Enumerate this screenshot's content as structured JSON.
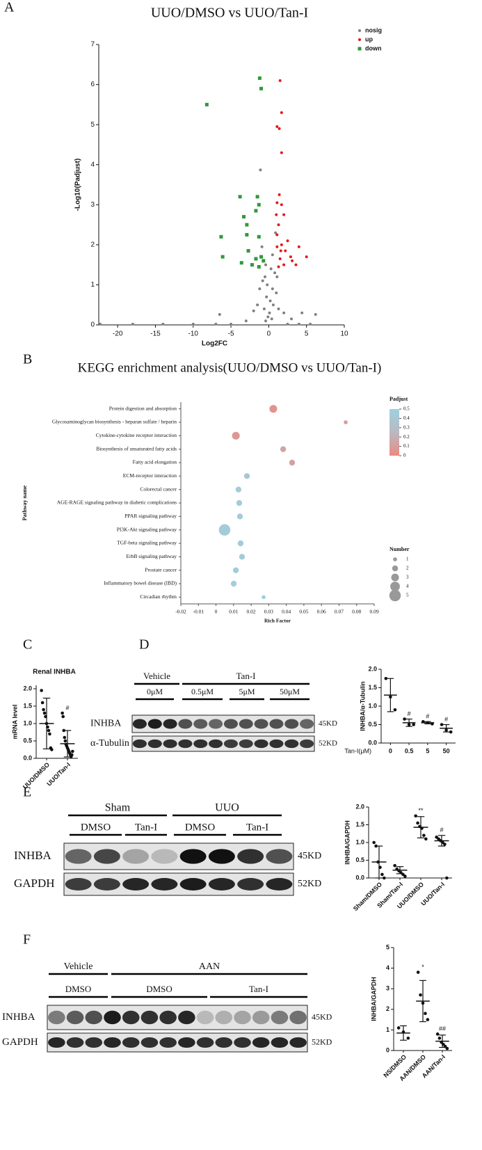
{
  "panels": [
    "A",
    "B",
    "C",
    "D",
    "E",
    "F"
  ],
  "chart_data": [
    {
      "type": "scatter",
      "title": "UUO/DMSO vs UUO/Tan-I",
      "x_label": "Log2FC",
      "y_label": "-Log10(Padjust)",
      "xlim": [
        -22.5,
        10
      ],
      "xticks": [
        -20,
        -15,
        -10,
        -5,
        0,
        5,
        10
      ],
      "ylim": [
        0,
        7
      ],
      "yticks": [
        0,
        1,
        2,
        3,
        4,
        5,
        6,
        7
      ],
      "legend": "upper right",
      "series": [
        {
          "name": "nosig",
          "color": "#808080",
          "marker": "circle",
          "x": [
            -1.1,
            -6.5,
            6.2,
            4.4,
            -0.5,
            0.3,
            -0.2,
            0.5,
            0.8,
            -0.8,
            -0.3,
            0.2,
            0.6,
            -0.6,
            1.0,
            -1.2,
            0.1,
            -0.1,
            0.4,
            -0.4,
            1.3,
            -1.5,
            2.0,
            -2.0,
            3.0,
            -3.0,
            -22.3,
            -18,
            -14,
            -10,
            -7,
            -5,
            2.5,
            4,
            5.5,
            0.9,
            -0.9,
            0.5,
            -0.4,
            1.1
          ],
          "y": [
            3.87,
            0.26,
            0.26,
            0.3,
            1.2,
            1.4,
            1.0,
            0.9,
            1.3,
            1.1,
            0.7,
            0.6,
            0.5,
            0.4,
            0.8,
            0.9,
            0.3,
            0.2,
            0.15,
            0.1,
            0.4,
            0.5,
            0.3,
            0.35,
            0.15,
            0.1,
            0.02,
            0.02,
            0.02,
            0.02,
            0.02,
            0.02,
            0.02,
            0.02,
            0.02,
            2.3,
            1.95,
            1.75,
            1.5,
            1.2
          ]
        },
        {
          "name": "up",
          "color": "#e31a1c",
          "marker": "circle",
          "x": [
            1.5,
            1.7,
            1.1,
            1.4,
            1.7,
            1.4,
            1.1,
            1.7,
            1.0,
            2.0,
            1.3,
            1.1,
            1.7,
            4.0,
            5.0,
            2.2,
            3.1,
            1.1,
            1.5,
            2.0,
            1.3,
            3.6,
            2.9,
            1.6,
            2.5
          ],
          "y": [
            6.1,
            5.3,
            4.95,
            4.9,
            4.3,
            3.25,
            3.05,
            3.0,
            2.75,
            2.75,
            2.5,
            2.25,
            2.0,
            1.95,
            1.7,
            1.85,
            1.6,
            1.95,
            1.65,
            1.5,
            1.45,
            1.5,
            1.7,
            1.85,
            2.1
          ]
        },
        {
          "name": "down",
          "color": "#2e9a3a",
          "marker": "square",
          "x": [
            -8.2,
            -1.2,
            -1.0,
            -3.8,
            -1.5,
            -6.3,
            -6.1,
            -3.6,
            -2.7,
            -1.3,
            -2.9,
            -1.7,
            -1.3,
            -2.9,
            -3.3,
            -1.7,
            -1.0,
            -2.2,
            -0.7,
            -1.3
          ],
          "y": [
            5.5,
            6.16,
            5.9,
            3.2,
            3.2,
            2.2,
            1.7,
            1.55,
            1.85,
            2.2,
            2.5,
            2.85,
            3.0,
            2.25,
            2.7,
            1.65,
            1.7,
            1.5,
            1.6,
            1.45
          ]
        }
      ]
    },
    {
      "type": "bubble",
      "title": "KEGG enrichment analysis(UUO/DMSO vs UUO/Tan-I)",
      "x_label": "Rich Factor",
      "y_label": "Pathway name",
      "categories": [
        "Protein digestion and absorption",
        "Glycosaminoglycan biosynthesis - heparan sulfate / heparin",
        "Cytokine-cytokine receptor interaction",
        "Biosynthesis of unsaturated fatty acids",
        "Fatty acid elongation",
        "ECM-receptor interaction",
        "Colorectal cancer",
        "AGE-RAGE signaling pathway in diabetic complications",
        "PPAR signaling pathway",
        "PI3K-Akt signaling pathway",
        "TGF-beta signaling pathway",
        "ErbB signaling pathway",
        "Prostate cancer",
        "Inflammatory bowel disease (IBD)",
        "Circadian rhythm"
      ],
      "x": [
        0.0326,
        0.0738,
        0.0113,
        0.0382,
        0.0433,
        0.0176,
        0.0128,
        0.0132,
        0.0136,
        0.0049,
        0.014,
        0.0148,
        0.0113,
        0.0101,
        0.0271
      ],
      "padjust": [
        0.05,
        0.1,
        0.08,
        0.15,
        0.12,
        0.4,
        0.45,
        0.45,
        0.45,
        0.45,
        0.45,
        0.45,
        0.45,
        0.48,
        0.5
      ],
      "number": [
        3,
        1,
        3,
        2,
        2,
        2,
        2,
        2,
        2,
        5,
        2,
        2,
        2,
        2,
        1
      ],
      "xlim": [
        -0.02,
        0.09
      ],
      "xticks": [
        -0.02,
        -0.01,
        0,
        0.01,
        0.02,
        0.03,
        0.04,
        0.05,
        0.06,
        0.07,
        0.08,
        0.09
      ],
      "color_title": "Padjust",
      "color_lim": [
        0,
        0.5
      ],
      "color_ticks": [
        0.5,
        0.4,
        0.3,
        0.2,
        0.1,
        0
      ],
      "color_scale": [
        "#ec8a80",
        "#b9b9c0",
        "#9fd0df"
      ],
      "size_title": "Number",
      "size_ticks": [
        1,
        2,
        3,
        4,
        5
      ]
    },
    {
      "type": "dot",
      "title": "Renal INHBA",
      "y_label": "mRNA level",
      "color": "#111111",
      "categories": [
        "UUO/DMSO",
        "UUO/Tan-I"
      ],
      "points": [
        [
          1.95,
          1.6,
          1.4,
          1.3,
          1.2,
          1.0,
          0.9,
          0.8,
          0.7,
          0.3,
          0.25
        ],
        [
          1.3,
          1.2,
          0.8,
          0.6,
          0.5,
          0.4,
          0.35,
          0.3,
          0.25,
          0.2,
          0.15,
          0.1,
          0.05,
          0.1,
          0.2
        ]
      ],
      "mean": [
        1.0,
        0.42
      ],
      "sd": [
        0.73,
        0.38
      ],
      "annotations": [
        null,
        "#"
      ],
      "ylim": [
        0,
        2.1
      ],
      "yticks": [
        {
          "value": 0,
          "label": "0.0"
        },
        0.5,
        {
          "value": 1,
          "label": "1.0"
        },
        1.5,
        {
          "value": 2,
          "label": "2.0"
        }
      ]
    },
    {
      "type": "dot",
      "y_label": "INHBA/α-Tubulin",
      "x_label": "Tan-I(μM)",
      "color": "#111111",
      "categories": [
        "0",
        "0.5",
        "5",
        "50"
      ],
      "points": [
        [
          1.75,
          1.25,
          0.9
        ],
        [
          0.65,
          0.5,
          0.5
        ],
        [
          0.58,
          0.55,
          0.52
        ],
        [
          0.5,
          0.35,
          0.3
        ]
      ],
      "mean": [
        1.3,
        0.55,
        0.55,
        0.4
      ],
      "sd": [
        0.45,
        0.1,
        0.03,
        0.1
      ],
      "annotations": [
        null,
        "#",
        "#",
        "#"
      ],
      "ylim": [
        0,
        2
      ],
      "yticks": [
        {
          "value": 0,
          "label": "0.0"
        },
        0.5,
        {
          "value": 1,
          "label": "1.0"
        },
        1.5,
        {
          "value": 2,
          "label": "2.0"
        }
      ]
    },
    {
      "type": "dot",
      "y_label": "INHBA/GAPDH",
      "color": "#111111",
      "categories": [
        "Sham/DMSO",
        "Sham/Tan-I",
        "UUO/DMSO",
        "UUO/Tan-I"
      ],
      "points": [
        [
          1.0,
          0.9,
          0.45,
          0.3,
          0.1,
          0.0
        ],
        [
          0.35,
          0.25,
          0.2,
          0.15,
          0.1,
          0.05
        ],
        [
          1.75,
          1.55,
          1.45,
          1.4,
          1.2,
          1.1
        ],
        [
          1.15,
          1.1,
          1.05,
          1.0,
          0.95,
          0.0
        ]
      ],
      "mean": [
        0.45,
        0.22,
        1.43,
        1.05
      ],
      "sd": [
        0.45,
        0.1,
        0.3,
        0.15
      ],
      "annotations": [
        null,
        null,
        "**",
        "#"
      ],
      "ylim": [
        0,
        2
      ],
      "yticks": [
        {
          "value": 0,
          "label": "0.0"
        },
        0.5,
        {
          "value": 1,
          "label": "1.0"
        },
        1.5,
        {
          "value": 2,
          "label": "2.0"
        }
      ]
    },
    {
      "type": "dot",
      "y_label": "INHBA/GAPDH",
      "color": "#111111",
      "categories": [
        "NS/DMSO",
        "AAN/DMSO",
        "AAN/Tan-I"
      ],
      "points": [
        [
          1.1,
          0.9,
          0.6
        ],
        [
          3.8,
          2.7,
          2.3,
          1.8,
          1.5
        ],
        [
          0.8,
          0.6,
          0.4,
          0.3,
          0.2,
          0.1
        ]
      ],
      "mean": [
        0.85,
        2.4,
        0.45
      ],
      "sd": [
        0.35,
        1.0,
        0.3
      ],
      "annotations": [
        null,
        "*",
        "##"
      ],
      "ylim": [
        0,
        5
      ],
      "yticks": [
        0,
        1,
        2,
        3,
        4,
        5
      ]
    }
  ],
  "blots": [
    {
      "groups": [
        "Vehicle",
        "Tan-I"
      ],
      "subgroups": [
        "0μM",
        "0.5μM",
        "5μM",
        "50μM"
      ],
      "rows": [
        {
          "name": "INHBA",
          "size": "45KD"
        },
        {
          "name": "α-Tubulin",
          "size": "52KD"
        }
      ]
    },
    {
      "groups": [
        "Sham",
        "UUO"
      ],
      "subgroups": [
        "DMSO",
        "Tan-I",
        "DMSO",
        "Tan-I"
      ],
      "rows": [
        {
          "name": "INHBA",
          "size": "45KD"
        },
        {
          "name": "GAPDH",
          "size": "52KD"
        }
      ]
    },
    {
      "groups": [
        "Vehicle",
        "AAN"
      ],
      "subgroups": [
        "DMSO",
        "DMSO",
        "Tan-I"
      ],
      "rows": [
        {
          "name": "INHBA",
          "size": "45KD"
        },
        {
          "name": "GAPDH",
          "size": "52KD"
        }
      ]
    }
  ]
}
